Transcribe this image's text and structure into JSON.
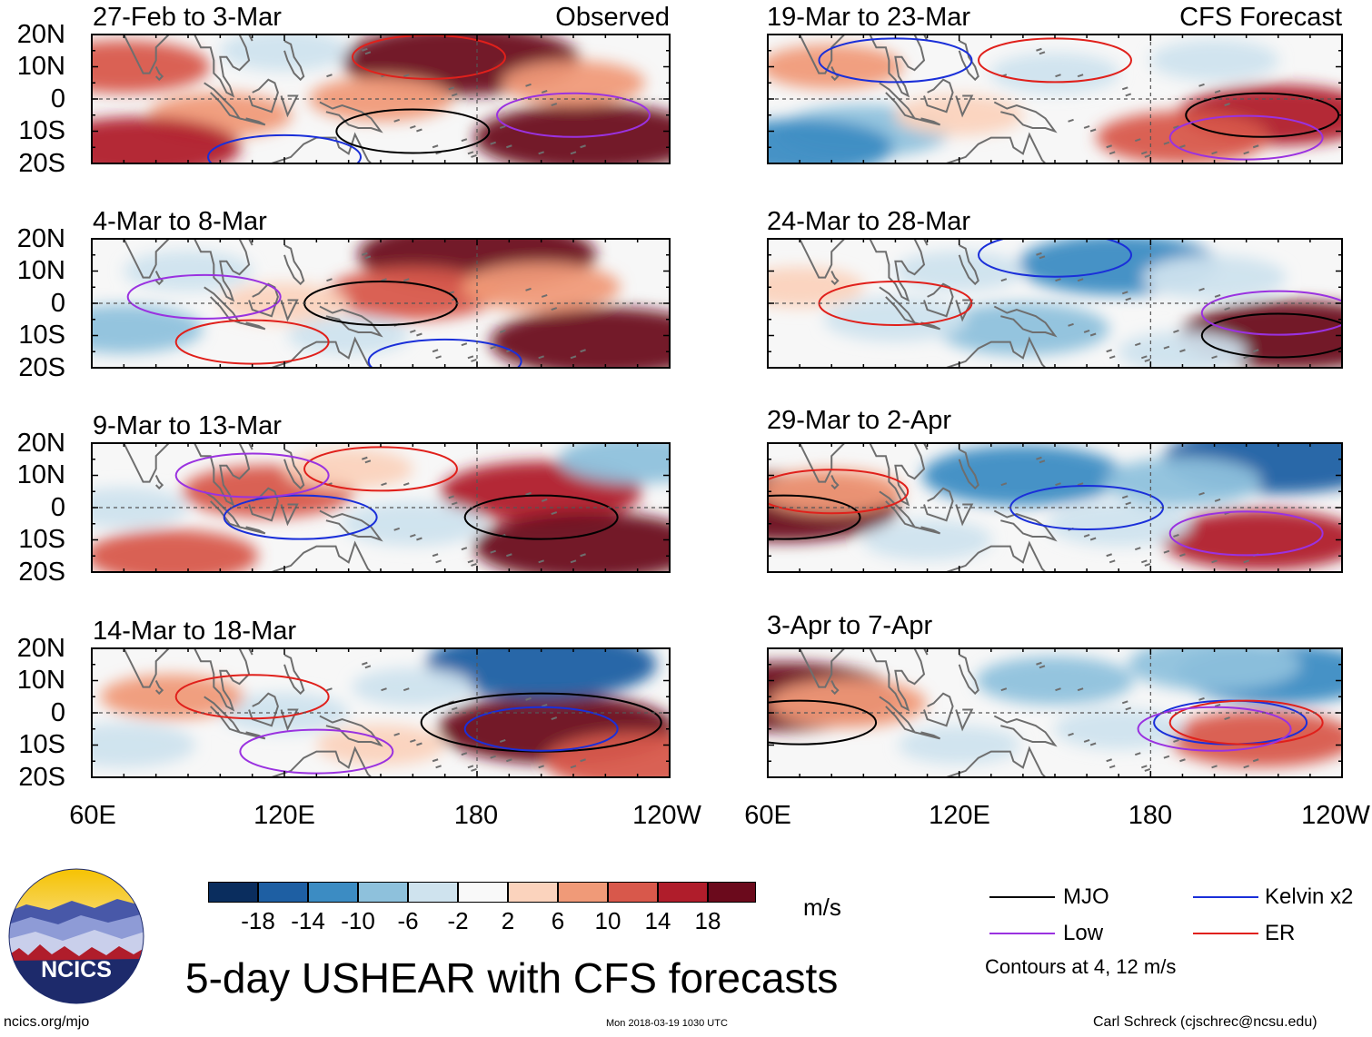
{
  "chart_data": [
    {
      "type": "heatmap",
      "variable": "USHEAR",
      "title": "27-Feb to 3-Mar",
      "tag": "Observed",
      "lon_range": [
        "60E",
        "120W"
      ],
      "lat_range": [
        "20S",
        "20N"
      ],
      "features": [
        {
          "kind": "fill",
          "lon": 175,
          "lat": 12,
          "value": 19
        },
        {
          "kind": "fill",
          "lon": 215,
          "lat": -12,
          "value": 18
        },
        {
          "kind": "fill",
          "lon": 70,
          "lat": 10,
          "value": 10
        },
        {
          "kind": "fill",
          "lon": 150,
          "lat": 0,
          "value": 6
        },
        {
          "kind": "fill",
          "lon": 100,
          "lat": -5,
          "value": 6
        },
        {
          "kind": "fill",
          "lon": 120,
          "lat": 15,
          "value": -4
        },
        {
          "kind": "fill",
          "lon": 210,
          "lat": 5,
          "value": 6
        },
        {
          "kind": "fill",
          "lon": 75,
          "lat": -15,
          "value": 14
        },
        {
          "kind": "contour",
          "system": "MJO",
          "lon": 160,
          "lat": -10,
          "value": 4
        },
        {
          "kind": "contour",
          "system": "Kelvin",
          "lon": 120,
          "lat": -18,
          "value": 4
        },
        {
          "kind": "contour",
          "system": "ER",
          "lon": 165,
          "lat": 13,
          "value": 4
        },
        {
          "kind": "contour",
          "system": "Low",
          "lon": 210,
          "lat": -5,
          "value": 4
        }
      ]
    },
    {
      "type": "heatmap",
      "variable": "USHEAR",
      "title": "4-Mar to 8-Mar",
      "tag": "",
      "lon_range": [
        "60E",
        "120W"
      ],
      "lat_range": [
        "20S",
        "20N"
      ],
      "features": [
        {
          "kind": "fill",
          "lon": 180,
          "lat": 15,
          "value": 19
        },
        {
          "kind": "fill",
          "lon": 220,
          "lat": -12,
          "value": 18
        },
        {
          "kind": "fill",
          "lon": 160,
          "lat": 3,
          "value": 10
        },
        {
          "kind": "fill",
          "lon": 70,
          "lat": -8,
          "value": -8
        },
        {
          "kind": "fill",
          "lon": 90,
          "lat": 10,
          "value": -4
        },
        {
          "kind": "fill",
          "lon": 120,
          "lat": 0,
          "value": 4
        },
        {
          "kind": "fill",
          "lon": 140,
          "lat": -10,
          "value": -3
        },
        {
          "kind": "fill",
          "lon": 200,
          "lat": 5,
          "value": 8
        },
        {
          "kind": "contour",
          "system": "MJO",
          "lon": 150,
          "lat": 0,
          "value": 4
        },
        {
          "kind": "contour",
          "system": "Kelvin",
          "lon": 170,
          "lat": -18,
          "value": 4
        },
        {
          "kind": "contour",
          "system": "ER",
          "lon": 110,
          "lat": -12,
          "value": 4
        },
        {
          "kind": "contour",
          "system": "Low",
          "lon": 95,
          "lat": 2,
          "value": 4
        }
      ]
    },
    {
      "type": "heatmap",
      "variable": "USHEAR",
      "title": "9-Mar to 13-Mar",
      "tag": "",
      "lon_range": [
        "60E",
        "120W"
      ],
      "lat_range": [
        "20S",
        "20N"
      ],
      "features": [
        {
          "kind": "fill",
          "lon": 200,
          "lat": 5,
          "value": 14
        },
        {
          "kind": "fill",
          "lon": 215,
          "lat": -12,
          "value": 18
        },
        {
          "kind": "fill",
          "lon": 115,
          "lat": 5,
          "value": 10
        },
        {
          "kind": "fill",
          "lon": 85,
          "lat": -15,
          "value": 10
        },
        {
          "kind": "fill",
          "lon": 160,
          "lat": -5,
          "value": -6
        },
        {
          "kind": "fill",
          "lon": 70,
          "lat": 0,
          "value": -4
        },
        {
          "kind": "fill",
          "lon": 230,
          "lat": 15,
          "value": -8
        },
        {
          "kind": "fill",
          "lon": 140,
          "lat": 12,
          "value": 4
        },
        {
          "kind": "contour",
          "system": "MJO",
          "lon": 200,
          "lat": -3,
          "value": 4
        },
        {
          "kind": "contour",
          "system": "Kelvin",
          "lon": 125,
          "lat": -3,
          "value": 4
        },
        {
          "kind": "contour",
          "system": "ER",
          "lon": 150,
          "lat": 12,
          "value": 4
        },
        {
          "kind": "contour",
          "system": "Low",
          "lon": 110,
          "lat": 10,
          "value": 4
        }
      ]
    },
    {
      "type": "heatmap",
      "variable": "USHEAR",
      "title": "14-Mar to 18-Mar",
      "tag": "",
      "lon_range": [
        "60E",
        "120W"
      ],
      "lat_range": [
        "20S",
        "20N"
      ],
      "features": [
        {
          "kind": "fill",
          "lon": 205,
          "lat": -5,
          "value": 19
        },
        {
          "kind": "fill",
          "lon": 200,
          "lat": 15,
          "value": -18
        },
        {
          "kind": "fill",
          "lon": 120,
          "lat": 0,
          "value": -4
        },
        {
          "kind": "fill",
          "lon": 85,
          "lat": 5,
          "value": 6
        },
        {
          "kind": "fill",
          "lon": 150,
          "lat": -10,
          "value": 4
        },
        {
          "kind": "fill",
          "lon": 70,
          "lat": -10,
          "value": -6
        },
        {
          "kind": "fill",
          "lon": 230,
          "lat": -15,
          "value": 12
        },
        {
          "kind": "fill",
          "lon": 160,
          "lat": 8,
          "value": -3
        },
        {
          "kind": "contour",
          "system": "MJO",
          "lon": 200,
          "lat": -3,
          "value": 12
        },
        {
          "kind": "contour",
          "system": "Kelvin",
          "lon": 200,
          "lat": -5,
          "value": 4
        },
        {
          "kind": "contour",
          "system": "ER",
          "lon": 110,
          "lat": 5,
          "value": 4
        },
        {
          "kind": "contour",
          "system": "Low",
          "lon": 130,
          "lat": -12,
          "value": 4
        }
      ]
    },
    {
      "type": "heatmap",
      "variable": "USHEAR",
      "title": "19-Mar to 23-Mar",
      "tag": "CFS Forecast",
      "lon_range": [
        "60E",
        "120W"
      ],
      "lat_range": [
        "20S",
        "20N"
      ],
      "features": [
        {
          "kind": "fill",
          "lon": 220,
          "lat": -5,
          "value": 14
        },
        {
          "kind": "fill",
          "lon": 190,
          "lat": -12,
          "value": 10
        },
        {
          "kind": "fill",
          "lon": 80,
          "lat": 10,
          "value": 6
        },
        {
          "kind": "fill",
          "lon": 90,
          "lat": -10,
          "value": -10
        },
        {
          "kind": "fill",
          "lon": 150,
          "lat": 8,
          "value": -4
        },
        {
          "kind": "fill",
          "lon": 200,
          "lat": 12,
          "value": -4
        },
        {
          "kind": "fill",
          "lon": 120,
          "lat": -5,
          "value": 4
        },
        {
          "kind": "fill",
          "lon": 70,
          "lat": -15,
          "value": -12
        },
        {
          "kind": "contour",
          "system": "MJO",
          "lon": 215,
          "lat": -5,
          "value": 4
        },
        {
          "kind": "contour",
          "system": "Kelvin",
          "lon": 100,
          "lat": 12,
          "value": 4
        },
        {
          "kind": "contour",
          "system": "ER",
          "lon": 150,
          "lat": 12,
          "value": 4
        },
        {
          "kind": "contour",
          "system": "Low",
          "lon": 210,
          "lat": -12,
          "value": 4
        }
      ]
    },
    {
      "type": "heatmap",
      "variable": "USHEAR",
      "title": "24-Mar to 28-Mar",
      "tag": "",
      "lon_range": [
        "60E",
        "120W"
      ],
      "lat_range": [
        "20S",
        "20N"
      ],
      "features": [
        {
          "kind": "fill",
          "lon": 225,
          "lat": -10,
          "value": 18
        },
        {
          "kind": "fill",
          "lon": 170,
          "lat": 12,
          "value": -14
        },
        {
          "kind": "fill",
          "lon": 140,
          "lat": -8,
          "value": -10
        },
        {
          "kind": "fill",
          "lon": 70,
          "lat": 5,
          "value": 4
        },
        {
          "kind": "fill",
          "lon": 100,
          "lat": -5,
          "value": -6
        },
        {
          "kind": "fill",
          "lon": 200,
          "lat": 8,
          "value": -6
        },
        {
          "kind": "fill",
          "lon": 120,
          "lat": 10,
          "value": -4
        },
        {
          "kind": "fill",
          "lon": 190,
          "lat": -15,
          "value": -4
        },
        {
          "kind": "contour",
          "system": "MJO",
          "lon": 220,
          "lat": -10,
          "value": 4
        },
        {
          "kind": "contour",
          "system": "Kelvin",
          "lon": 150,
          "lat": 15,
          "value": 4
        },
        {
          "kind": "contour",
          "system": "ER",
          "lon": 100,
          "lat": 0,
          "value": 4
        },
        {
          "kind": "contour",
          "system": "Low",
          "lon": 220,
          "lat": -3,
          "value": 4
        }
      ]
    },
    {
      "type": "heatmap",
      "variable": "USHEAR",
      "title": "29-Mar to 2-Apr",
      "tag": "",
      "lon_range": [
        "60E",
        "120W"
      ],
      "lat_range": [
        "20S",
        "20N"
      ],
      "features": [
        {
          "kind": "fill",
          "lon": 65,
          "lat": 0,
          "value": 18
        },
        {
          "kind": "fill",
          "lon": 220,
          "lat": 15,
          "value": -18
        },
        {
          "kind": "fill",
          "lon": 140,
          "lat": 10,
          "value": -14
        },
        {
          "kind": "fill",
          "lon": 215,
          "lat": -10,
          "value": 14
        },
        {
          "kind": "fill",
          "lon": 80,
          "lat": 5,
          "value": 6
        },
        {
          "kind": "fill",
          "lon": 170,
          "lat": -5,
          "value": -6
        },
        {
          "kind": "fill",
          "lon": 110,
          "lat": -10,
          "value": -4
        },
        {
          "kind": "fill",
          "lon": 190,
          "lat": 8,
          "value": -8
        },
        {
          "kind": "contour",
          "system": "MJO",
          "lon": 65,
          "lat": -3,
          "value": 4
        },
        {
          "kind": "contour",
          "system": "Kelvin",
          "lon": 160,
          "lat": 0,
          "value": 4
        },
        {
          "kind": "contour",
          "system": "ER",
          "lon": 80,
          "lat": 5,
          "value": 4
        },
        {
          "kind": "contour",
          "system": "Low",
          "lon": 210,
          "lat": -8,
          "value": 4
        }
      ]
    },
    {
      "type": "heatmap",
      "variable": "USHEAR",
      "title": "3-Apr to 7-Apr",
      "tag": "",
      "lon_range": [
        "60E",
        "120W"
      ],
      "lat_range": [
        "20S",
        "20N"
      ],
      "features": [
        {
          "kind": "fill",
          "lon": 65,
          "lat": 5,
          "value": 18
        },
        {
          "kind": "fill",
          "lon": 220,
          "lat": 12,
          "value": -14
        },
        {
          "kind": "fill",
          "lon": 215,
          "lat": -8,
          "value": 12
        },
        {
          "kind": "fill",
          "lon": 85,
          "lat": 3,
          "value": 8
        },
        {
          "kind": "fill",
          "lon": 150,
          "lat": 10,
          "value": -8
        },
        {
          "kind": "fill",
          "lon": 170,
          "lat": -5,
          "value": -4
        },
        {
          "kind": "fill",
          "lon": 120,
          "lat": -10,
          "value": -3
        },
        {
          "kind": "fill",
          "lon": 200,
          "lat": 15,
          "value": -10
        },
        {
          "kind": "contour",
          "system": "MJO",
          "lon": 70,
          "lat": -3,
          "value": 4
        },
        {
          "kind": "contour",
          "system": "Kelvin",
          "lon": 205,
          "lat": -3,
          "value": 4
        },
        {
          "kind": "contour",
          "system": "ER",
          "lon": 210,
          "lat": -3,
          "value": 4
        },
        {
          "kind": "contour",
          "system": "Low",
          "lon": 200,
          "lat": -5,
          "value": 4
        }
      ]
    }
  ],
  "axes": {
    "y_ticks": [
      "20N",
      "10N",
      "0",
      "10S",
      "20S"
    ],
    "y_values": [
      20,
      10,
      0,
      -10,
      -20
    ],
    "x_ticks": [
      "60E",
      "120E",
      "180",
      "120W"
    ],
    "x_values": [
      60,
      120,
      180,
      240
    ]
  },
  "colorbar": {
    "ticks": [
      "-18",
      "-14",
      "-10",
      "-6",
      "-2",
      "2",
      "6",
      "10",
      "14",
      "18"
    ],
    "colors": [
      "#0a2d5e",
      "#1e5fa3",
      "#3c8cc3",
      "#8ec1dc",
      "#cfe3ee",
      "#f9f9f9",
      "#fbd3bd",
      "#f09a78",
      "#d8584b",
      "#b01d2b",
      "#6b0a1c"
    ],
    "unit": "m/s"
  },
  "legend": {
    "items": [
      {
        "label": "MJO",
        "color": "#000000"
      },
      {
        "label": "Kelvin x2",
        "color": "#1a2fd9"
      },
      {
        "label": "Low",
        "color": "#9a32e0"
      },
      {
        "label": "ER",
        "color": "#e0201b"
      }
    ],
    "note": "Contours at 4, 12 m/s"
  },
  "title": "5-day USHEAR with CFS forecasts",
  "logo": {
    "text": "NCICS"
  },
  "footer": {
    "left": "ncics.org/mjo",
    "center": "Mon 2018-03-19 1030 UTC",
    "right": "Carl Schreck (cjschrec@ncsu.edu)"
  },
  "accent": {
    "land": "#6e6e6e",
    "storm": "#b01d2b"
  }
}
